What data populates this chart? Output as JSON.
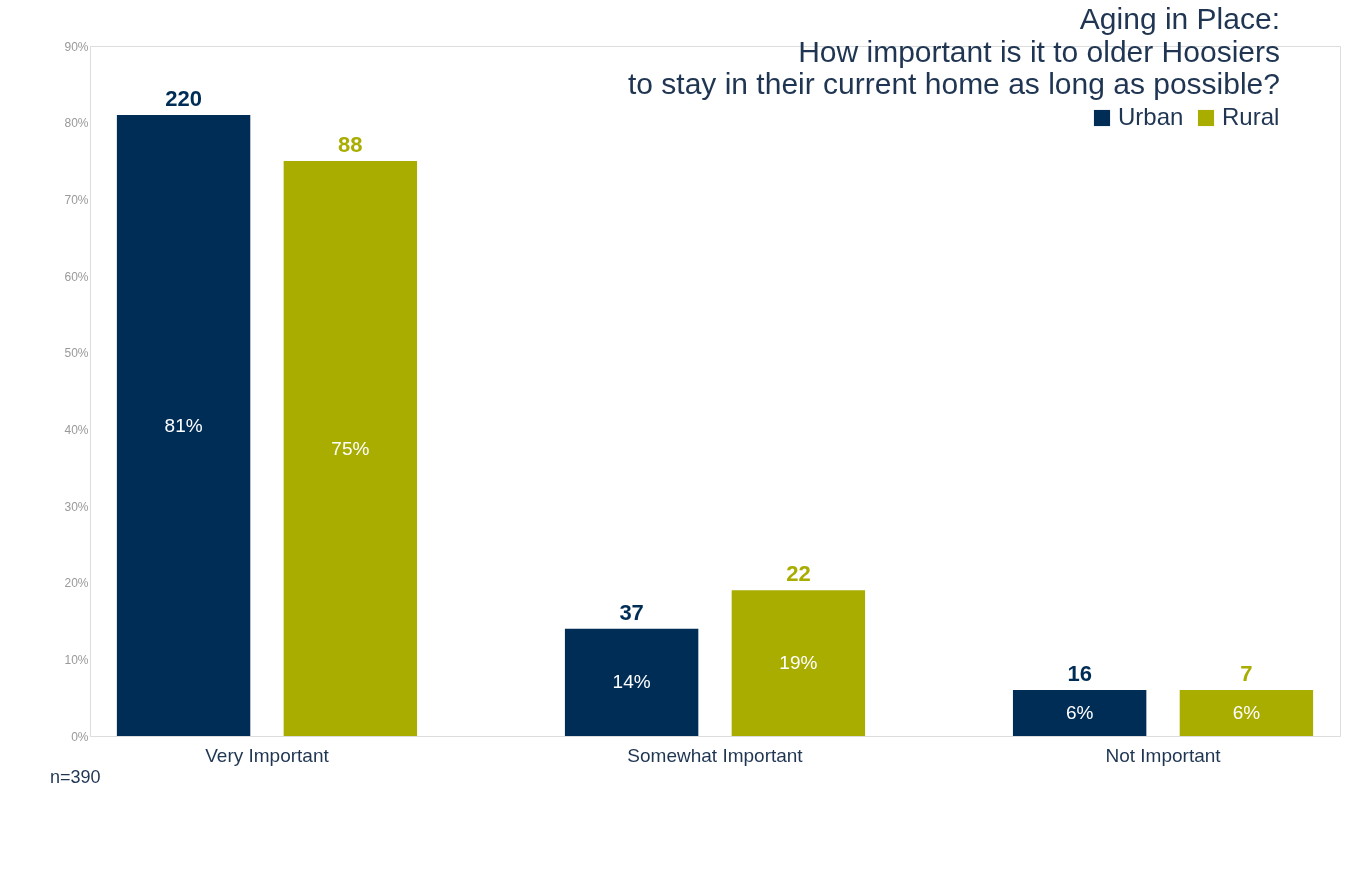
{
  "chart_data": {
    "type": "bar",
    "title": "Aging in Place:",
    "subtitle": "How important is it to older Hoosiers to stay in their current home as long as possible?",
    "categories": [
      "Very Important",
      "Somewhat Important",
      "Not Important"
    ],
    "series": [
      {
        "name": "Urban",
        "color": "#002d56",
        "values": [
          81,
          14,
          6
        ],
        "value_labels": [
          "81%",
          "14%",
          "6%"
        ]
      },
      {
        "name": "Rural",
        "color": "#a8ad00",
        "values": [
          75,
          19,
          6
        ],
        "value_labels": [
          "75%",
          "19%",
          "6%"
        ]
      }
    ],
    "ylim": [
      0,
      90
    ],
    "yticks": [
      {
        "value": 0,
        "label": "0%"
      },
      {
        "value": 10,
        "label": "10%"
      },
      {
        "value": 20,
        "label": "20%"
      },
      {
        "value": 30,
        "label": "30%"
      },
      {
        "value": 40,
        "label": "40%"
      },
      {
        "value": 50,
        "label": "50%"
      },
      {
        "value": 60,
        "label": "60%"
      },
      {
        "value": 70,
        "label": "70%"
      },
      {
        "value": 80,
        "label": "80%"
      },
      {
        "value": 90,
        "label": "90%"
      }
    ],
    "annotations": [
      "220",
      "37",
      "16",
      "88",
      "22",
      "7",
      "n=390"
    ],
    "grid": false,
    "legend": "top right"
  }
}
